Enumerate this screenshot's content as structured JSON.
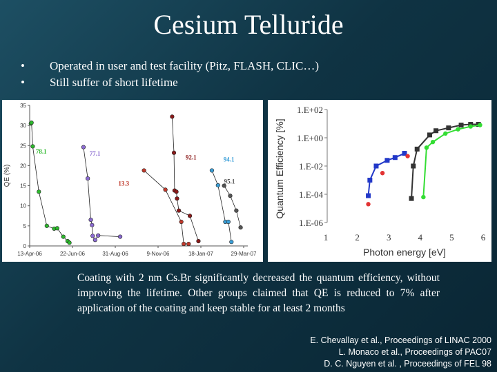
{
  "slide": {
    "title": "Cesium Telluride",
    "bullets": [
      "Operated in user and test facility (Pitz, FLASH, CLIC…)",
      "Still suffer of short lifetime"
    ],
    "description": "Coating with 2 nm Cs.Br significantly decreased the quantum efficiency, without improving the lifetime. Other groups claimed that QE is reduced to 7% after application of the coating and keep stable for at least 2 months",
    "references": [
      "E. Chevallay et al., Proceedings of LINAC 2000",
      "L. Monaco et al., Proceedings of PAC07",
      "D. C. Nguyen et al. , Proceedings of FEL 98"
    ]
  },
  "chart_data": [
    {
      "type": "scatter",
      "title": "",
      "ylabel": "QE (%)",
      "xlabel": "",
      "ylim": [
        0,
        35
      ],
      "yticks": [
        0,
        5,
        10,
        15,
        20,
        25,
        30,
        35
      ],
      "xlim": [
        0,
        350
      ],
      "x_unit": "days since first tick",
      "xticks": [
        {
          "label": "13-Apr-06",
          "x": 0
        },
        {
          "label": "22-Jun-06",
          "x": 70
        },
        {
          "label": "31-Aug-06",
          "x": 140
        },
        {
          "label": "9-Nov-06",
          "x": 210
        },
        {
          "label": "18-Jan-07",
          "x": 280
        },
        {
          "label": "29-Mar-07",
          "x": 350
        }
      ],
      "series": [
        {
          "name": "",
          "color": "#2db82d",
          "annotation": "78.1",
          "annotation_at": [
            10,
            23
          ],
          "x": [
            2,
            3,
            5,
            15,
            28,
            40,
            45,
            55,
            62,
            65
          ],
          "y": [
            30.5,
            30.7,
            24.8,
            13.5,
            5,
            4.3,
            4.4,
            2.3,
            1.2,
            0.8
          ]
        },
        {
          "name": "",
          "color": "#8a6ad0",
          "annotation": "77.1",
          "annotation_at": [
            98,
            22.5
          ],
          "x": [
            88,
            95,
            100,
            102,
            103,
            107,
            112,
            148
          ],
          "y": [
            24.6,
            16.8,
            6.5,
            5.2,
            2.5,
            1.5,
            2.6,
            2.3
          ]
        },
        {
          "name": "",
          "color": "#c0392b",
          "annotation": "13.3",
          "annotation_at": [
            145,
            15
          ],
          "x": [
            187,
            222,
            248,
            252,
            260
          ],
          "y": [
            18.8,
            14,
            6,
            0.5,
            0.5
          ]
        },
        {
          "name": "",
          "color": "#8b1a1a",
          "annotation": "92.1",
          "annotation_at": [
            255,
            21.5
          ],
          "x": [
            233,
            236,
            237,
            240,
            241,
            244,
            262,
            276
          ],
          "y": [
            32.2,
            23.2,
            13.8,
            13.5,
            11.8,
            8.8,
            7.5,
            1.2
          ]
        },
        {
          "name": "",
          "color": "#3a9fd8",
          "annotation": "94.1",
          "annotation_at": [
            317,
            21
          ],
          "x": [
            298,
            308,
            320,
            325,
            330
          ],
          "y": [
            18.8,
            15.1,
            6,
            6,
            1
          ]
        },
        {
          "name": "",
          "color": "#555555",
          "annotation": "95.1",
          "annotation_at": [
            318,
            15.5
          ],
          "x": [
            318,
            328,
            338,
            345
          ],
          "y": [
            15,
            12.5,
            8.8,
            4.6
          ]
        }
      ]
    },
    {
      "type": "line",
      "title": "",
      "xlabel": "Photon energy [eV]",
      "ylabel": "Quantum Efficiency [%]",
      "xlim": [
        1,
        6
      ],
      "xticks": [
        1,
        2,
        3,
        4,
        5,
        6
      ],
      "yscale": "log",
      "ytick_labels": [
        "1.E+02",
        "1.E+00",
        "1.E-02",
        "1.E-04",
        "1.E-06"
      ],
      "ytick_exponents": [
        2,
        0,
        -2,
        -4,
        -6
      ],
      "ylim_exponent": [
        -6,
        2
      ],
      "series": [
        {
          "name": "",
          "color": "#2238c8",
          "marker": "square",
          "x": [
            2.35,
            2.4,
            2.6,
            2.95,
            3.2,
            3.5
          ],
          "y_exp": [
            -4.1,
            -3.0,
            -2.0,
            -1.6,
            -1.4,
            -1.1
          ]
        },
        {
          "name": "",
          "color": "#e23333",
          "marker": "circle",
          "x": [
            2.35,
            2.8,
            3.6
          ],
          "y_exp": [
            -4.7,
            -2.5,
            -1.3
          ]
        },
        {
          "name": "",
          "color": "#333333",
          "marker": "square",
          "x": [
            3.72,
            3.78,
            3.9,
            4.3,
            4.5,
            4.9,
            5.3,
            5.6,
            5.85
          ],
          "y_exp": [
            -4.3,
            -2.0,
            -0.8,
            0.2,
            0.5,
            0.7,
            0.9,
            0.95,
            0.95
          ]
        },
        {
          "name": "",
          "color": "#33dd33",
          "marker": "circle",
          "x": [
            4.1,
            4.2,
            4.4,
            4.8,
            5.2,
            5.6,
            5.9
          ],
          "y_exp": [
            -4.2,
            -0.7,
            -0.3,
            0.3,
            0.6,
            0.8,
            0.9
          ]
        }
      ]
    }
  ]
}
